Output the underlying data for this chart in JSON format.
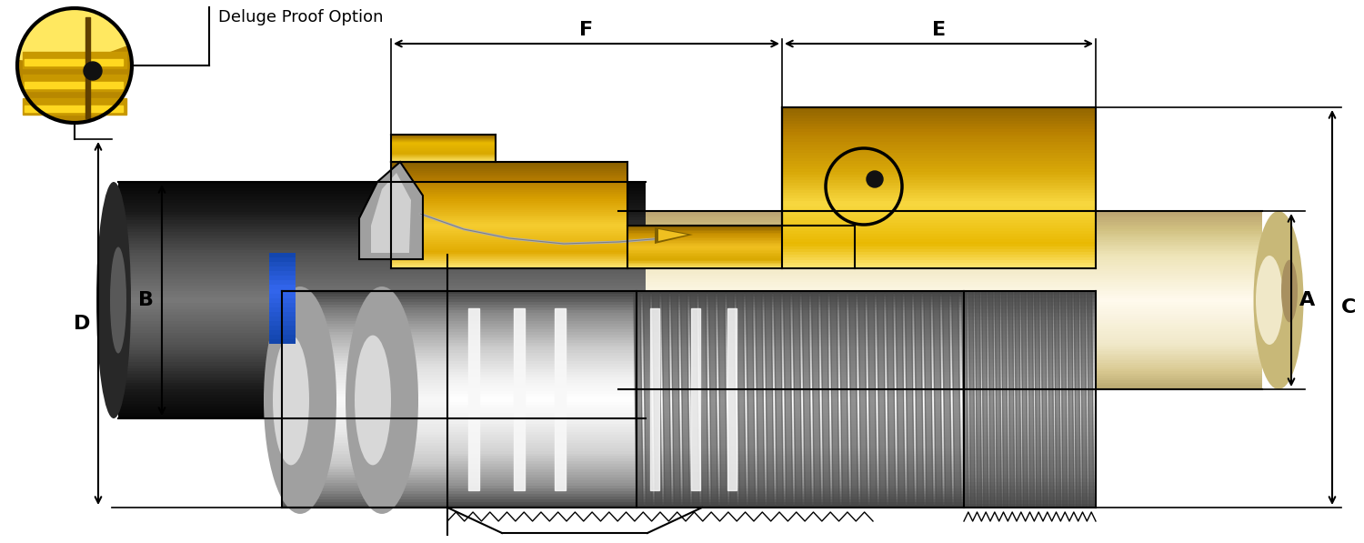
{
  "bg_color": "#ffffff",
  "lc": "#000000",
  "gold_a": "#C8960A",
  "gold_b": "#E8B800",
  "gold_c": "#F5D040",
  "gold_hi": "#FFEE80",
  "silver_a": "#505050",
  "silver_b": "#888888",
  "silver_c": "#C8C8C8",
  "silver_hi": "#F0F0F0",
  "blue_seal": "#2255BB",
  "cream_a": "#C8B880",
  "cream_b": "#E8D8A8",
  "cream_c": "#F8F0D0",
  "black_a": "#080808",
  "black_b": "#303030",
  "black_c": "#686868",
  "deluge_text": "Deluge Proof Option",
  "lA": "A",
  "lB": "B",
  "lC": "C",
  "lD": "D",
  "lE": "E",
  "lF": "F"
}
